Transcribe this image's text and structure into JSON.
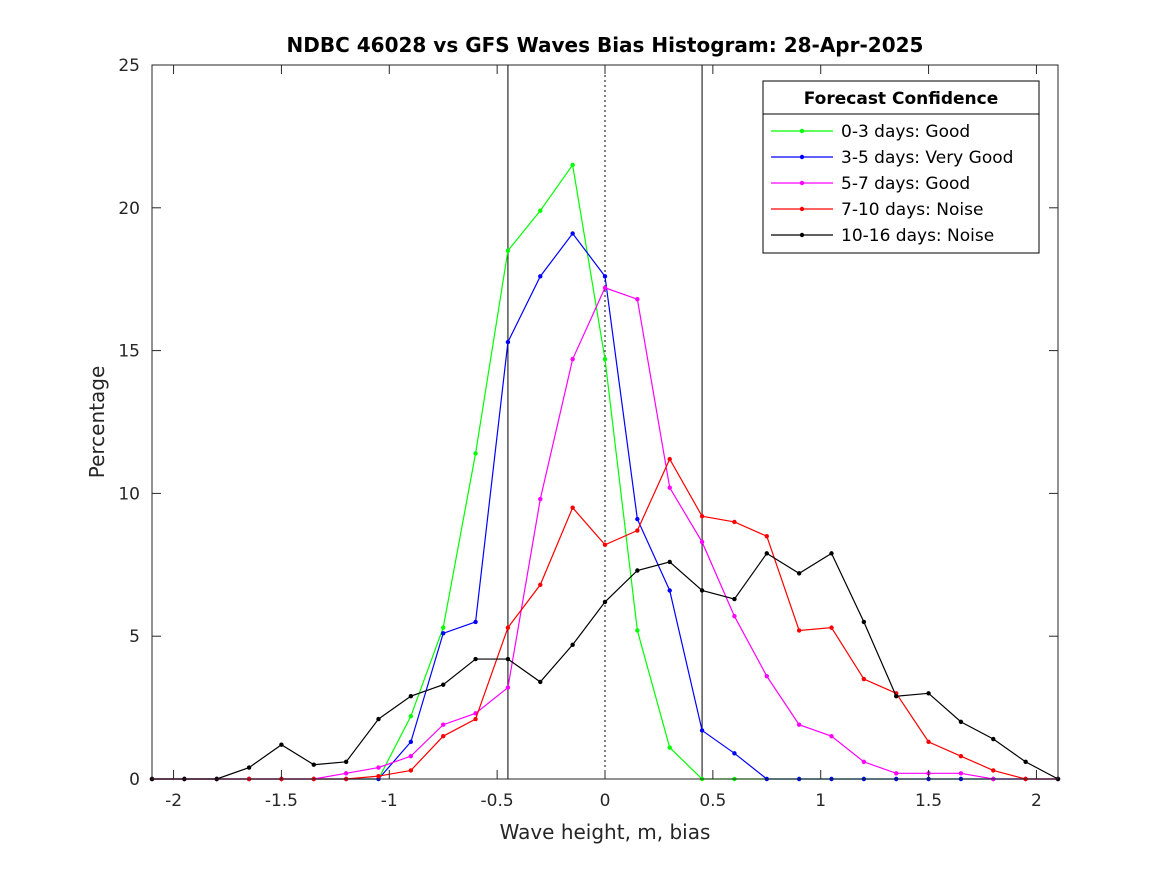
{
  "chart_data": {
    "type": "line",
    "title": "NDBC 46028 vs GFS Waves Bias Histogram: 28-Apr-2025",
    "xlabel": "Wave height, m, bias",
    "ylabel": "Percentage",
    "xlim": [
      -2.1,
      2.1
    ],
    "ylim": [
      0,
      25
    ],
    "xticks": [
      -2,
      -1.5,
      -1,
      -0.5,
      0,
      0.5,
      1,
      1.5,
      2
    ],
    "xtick_labels": [
      "-2",
      "-1.5",
      "-1",
      "-0.5",
      "0",
      "0.5",
      "1",
      "1.5",
      "2"
    ],
    "yticks": [
      0,
      5,
      10,
      15,
      20,
      25
    ],
    "ytick_labels": [
      "0",
      "5",
      "10",
      "15",
      "20",
      "25"
    ],
    "grid": false,
    "legend": {
      "title": "Forecast Confidence",
      "location": "top-right"
    },
    "reference_lines": [
      {
        "x": -0.45,
        "style": "solid"
      },
      {
        "x": 0,
        "style": "dotted"
      },
      {
        "x": 0.45,
        "style": "solid"
      }
    ],
    "x": [
      -2.1,
      -1.95,
      -1.8,
      -1.65,
      -1.5,
      -1.35,
      -1.2,
      -1.05,
      -0.9,
      -0.75,
      -0.6,
      -0.45,
      -0.3,
      -0.15,
      0,
      0.15,
      0.3,
      0.45,
      0.6,
      0.75,
      0.9,
      1.05,
      1.2,
      1.35,
      1.5,
      1.65,
      1.8,
      1.95,
      2.1
    ],
    "series": [
      {
        "name": "0-3 days: Good",
        "color": "#00ff00",
        "values": [
          0,
          0,
          0,
          0,
          0,
          0,
          0,
          0,
          2.2,
          5.3,
          11.4,
          18.5,
          19.9,
          21.5,
          14.7,
          5.2,
          1.1,
          0,
          0,
          0,
          0,
          0,
          0,
          0,
          0,
          0,
          0,
          0,
          0
        ]
      },
      {
        "name": "3-5 days: Very Good",
        "color": "#0000ff",
        "values": [
          0,
          0,
          0,
          0,
          0,
          0,
          0,
          0,
          1.3,
          5.1,
          5.5,
          15.3,
          17.6,
          19.1,
          17.6,
          9.1,
          6.6,
          1.7,
          0.9,
          0,
          0,
          0,
          0,
          0,
          0,
          0,
          0,
          0,
          0
        ]
      },
      {
        "name": "5-7 days: Good",
        "color": "#ff00ff",
        "values": [
          0,
          0,
          0,
          0,
          0,
          0,
          0.2,
          0.4,
          0.8,
          1.9,
          2.3,
          3.2,
          9.8,
          14.7,
          17.2,
          16.8,
          10.2,
          8.3,
          5.7,
          3.6,
          1.9,
          1.5,
          0.6,
          0.2,
          0.2,
          0.2,
          0,
          0,
          0
        ]
      },
      {
        "name": "7-10 days: Noise",
        "color": "#ff0000",
        "values": [
          0,
          0,
          0,
          0,
          0,
          0,
          0,
          0.1,
          0.3,
          1.5,
          2.1,
          5.3,
          6.8,
          9.5,
          8.2,
          8.7,
          11.2,
          9.2,
          9.0,
          8.5,
          5.2,
          5.3,
          3.5,
          3.0,
          1.3,
          0.8,
          0.3,
          0,
          0
        ]
      },
      {
        "name": "10-16 days: Noise",
        "color": "#000000",
        "values": [
          0,
          0,
          0,
          0.4,
          1.2,
          0.5,
          0.6,
          2.1,
          2.9,
          3.3,
          4.2,
          4.2,
          3.4,
          4.7,
          6.2,
          7.3,
          7.6,
          6.6,
          6.3,
          7.9,
          7.2,
          7.9,
          5.5,
          2.9,
          3.0,
          2.0,
          1.4,
          0.6,
          0
        ]
      }
    ]
  }
}
